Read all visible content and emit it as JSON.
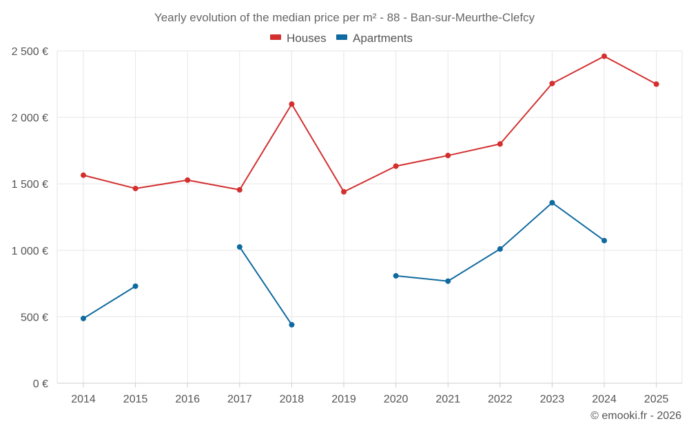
{
  "chart_data": {
    "type": "line",
    "title": "Yearly evolution of the median price per m² - 88 - Ban-sur-Meurthe-Clefcy",
    "categories": [
      "2014",
      "2015",
      "2016",
      "2017",
      "2018",
      "2019",
      "2020",
      "2021",
      "2022",
      "2023",
      "2024",
      "2025"
    ],
    "y_ticks": [
      "0 €",
      "500 €",
      "1 000 €",
      "1 500 €",
      "2 000 €",
      "2 500 €"
    ],
    "ylim": [
      0,
      2500
    ],
    "grid": true,
    "legend_position": "top-center",
    "series": [
      {
        "name": "Houses",
        "color": "#d32f2f",
        "values": [
          1565,
          1465,
          1528,
          1455,
          2100,
          1440,
          1633,
          1713,
          1800,
          2255,
          2460,
          2250
        ]
      },
      {
        "name": "Apartments",
        "color": "#0f6aa0",
        "values": [
          487,
          730,
          null,
          1025,
          440,
          null,
          808,
          768,
          1010,
          1358,
          1073,
          null
        ]
      }
    ],
    "credit": "© emooki.fr - 2026"
  }
}
